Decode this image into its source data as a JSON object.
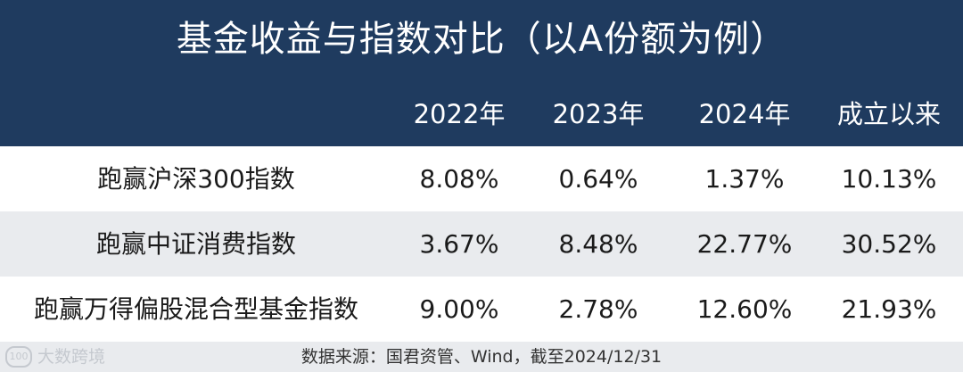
{
  "title": "基金收益与指数对比（以A份额为例）",
  "columns": [
    "2022年",
    "2023年",
    "2024年",
    "成立以来"
  ],
  "rows": [
    {
      "name": "跑赢沪深300指数",
      "values": [
        "8.08%",
        "0.64%",
        "1.37%",
        "10.13%"
      ]
    },
    {
      "name": "跑赢中证消费指数",
      "values": [
        "3.67%",
        "8.48%",
        "22.77%",
        "30.52%"
      ]
    },
    {
      "name": "跑赢万得偏股混合型基金指数",
      "values": [
        "9.00%",
        "2.78%",
        "12.60%",
        "21.93%"
      ]
    }
  ],
  "source": "数据来源：国君资管、Wind，截至2024/12/31",
  "watermark": {
    "text": "大数跨境",
    "logo": "100"
  },
  "colors": {
    "header_bg": "#1f3b5f",
    "stripe_bg": "#e9ebee"
  }
}
